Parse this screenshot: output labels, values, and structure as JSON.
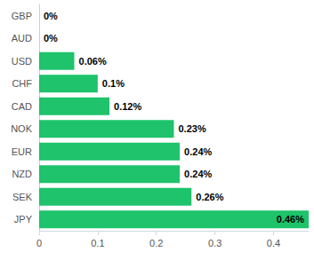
{
  "chart_data": {
    "type": "bar",
    "orientation": "horizontal",
    "categories": [
      "GBP",
      "AUD",
      "USD",
      "CHF",
      "CAD",
      "NOK",
      "EUR",
      "NZD",
      "SEK",
      "JPY"
    ],
    "values": [
      0,
      0,
      0.06,
      0.1,
      0.12,
      0.23,
      0.24,
      0.24,
      0.26,
      0.46
    ],
    "value_labels": [
      "0%",
      "0%",
      "0.06%",
      "0.1%",
      "0.12%",
      "0.23%",
      "0.24%",
      "0.24%",
      "0.26%",
      "0.46%"
    ],
    "data_labels": true,
    "color": "#1ec36b",
    "xlim": [
      0,
      0.46
    ],
    "xticks": [
      0,
      0.1,
      0.2,
      0.3,
      0.4
    ],
    "grid": false
  }
}
